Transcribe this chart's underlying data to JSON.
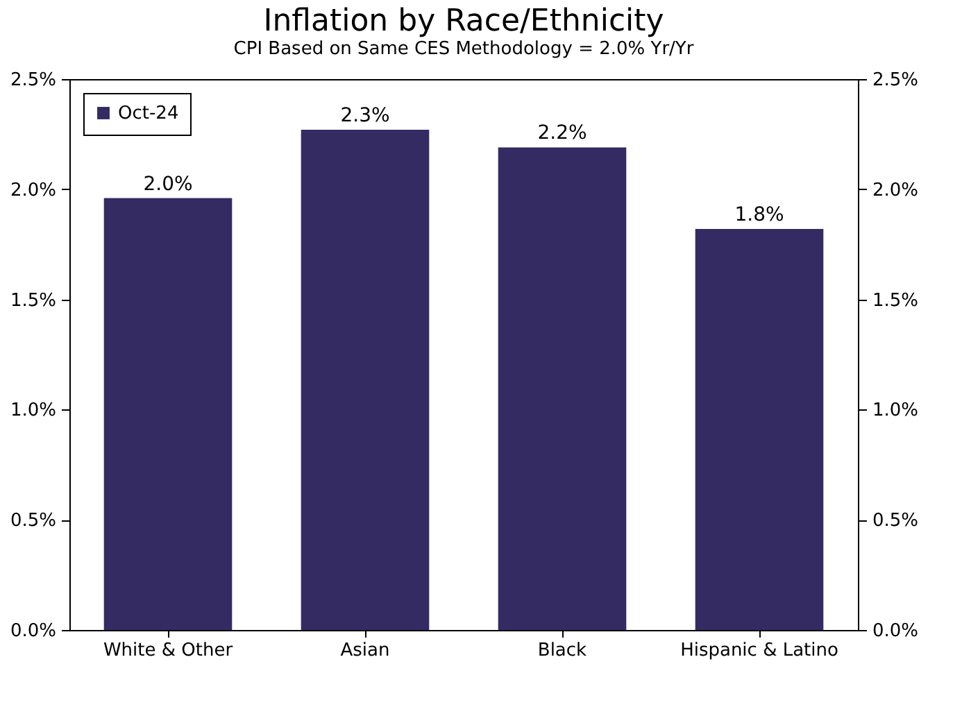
{
  "chart_data": {
    "type": "bar",
    "title": "Inflation by Race/Ethnicity",
    "subtitle": "CPI Based on Same CES Methodology = 2.0% Yr/Yr",
    "categories": [
      "White & Other",
      "Asian",
      "Black",
      "Hispanic & Latino"
    ],
    "series": [
      {
        "name": "Oct-24",
        "color": "#352b63",
        "values": [
          1.96,
          2.27,
          2.19,
          1.82
        ],
        "value_labels": [
          "2.0%",
          "2.3%",
          "2.2%",
          "1.8%"
        ]
      }
    ],
    "ylim": [
      0,
      2.5
    ],
    "yticks": [
      {
        "value": 0,
        "label": "0.0%"
      },
      {
        "value": 0.5,
        "label": "0.5%"
      },
      {
        "value": 1,
        "label": "1.0%"
      },
      {
        "value": 1.5,
        "label": "1.5%"
      },
      {
        "value": 2,
        "label": "2.0%"
      },
      {
        "value": 2.5,
        "label": "2.5%"
      }
    ],
    "y2lim": [
      0,
      2.5
    ],
    "y2ticks": [
      {
        "value": 0,
        "label": "0.0%"
      },
      {
        "value": 0.5,
        "label": "0.5%"
      },
      {
        "value": 1,
        "label": "1.0%"
      },
      {
        "value": 1.5,
        "label": "1.5%"
      },
      {
        "value": 2,
        "label": "2.0%"
      },
      {
        "value": 2.5,
        "label": "2.5%"
      }
    ],
    "legend": "top left",
    "grid": false
  }
}
